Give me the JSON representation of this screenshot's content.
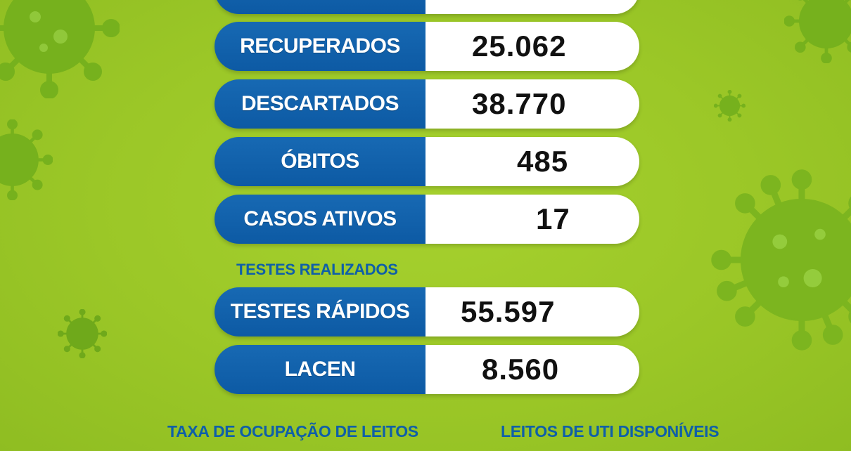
{
  "stats": [
    {
      "label": "",
      "value": ""
    },
    {
      "label": "RECUPERADOS",
      "value": "25.062"
    },
    {
      "label": "DESCARTADOS",
      "value": "38.770"
    },
    {
      "label": "ÓBITOS",
      "value": "485"
    },
    {
      "label": "CASOS ATIVOS",
      "value": "17"
    }
  ],
  "tests_heading": "TESTES REALIZADOS",
  "tests": [
    {
      "label": "TESTES RÁPIDOS",
      "value": "55.597"
    },
    {
      "label": "LACEN",
      "value": "8.560"
    }
  ],
  "footer": {
    "left_heading": "TAXA DE OCUPAÇÃO DE LEITOS",
    "right_heading": "LEITOS DE UTI DISPONÍVEIS"
  },
  "colors": {
    "background": "#9bc727",
    "label_blue": "#0d5aa4",
    "heading_blue": "#0f5fa8",
    "virus_green": "#7cb51f"
  },
  "icons": [
    "virus-icon"
  ]
}
